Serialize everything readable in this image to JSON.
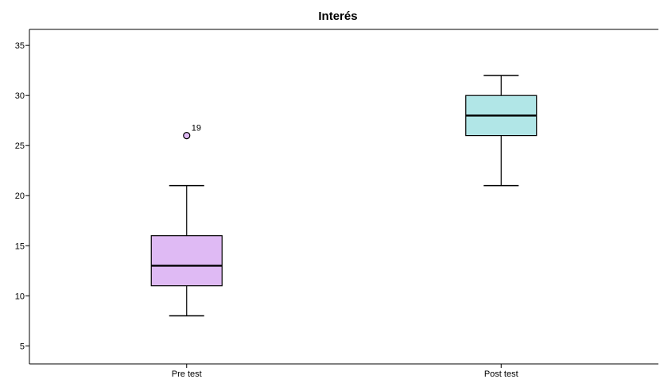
{
  "chart_data": {
    "type": "boxplot",
    "title": "Interés",
    "xlabel": "",
    "ylabel": "",
    "categories": [
      "Pre test",
      "Post test"
    ],
    "ylim": [
      3.2,
      36.6
    ],
    "yticks": [
      5,
      10,
      15,
      20,
      25,
      30,
      35
    ],
    "grid": false,
    "boxes": [
      {
        "category": "Pre test",
        "whisker_low": 8,
        "q1": 11,
        "median": 13,
        "q3": 16,
        "whisker_high": 21,
        "outliers": [
          {
            "value": 26,
            "label": "19"
          }
        ],
        "color": "#dfbaf4"
      },
      {
        "category": "Post test",
        "whisker_low": 21,
        "q1": 26,
        "median": 28,
        "q3": 30,
        "whisker_high": 32,
        "outliers": [],
        "color": "#b1e6e7"
      }
    ]
  }
}
